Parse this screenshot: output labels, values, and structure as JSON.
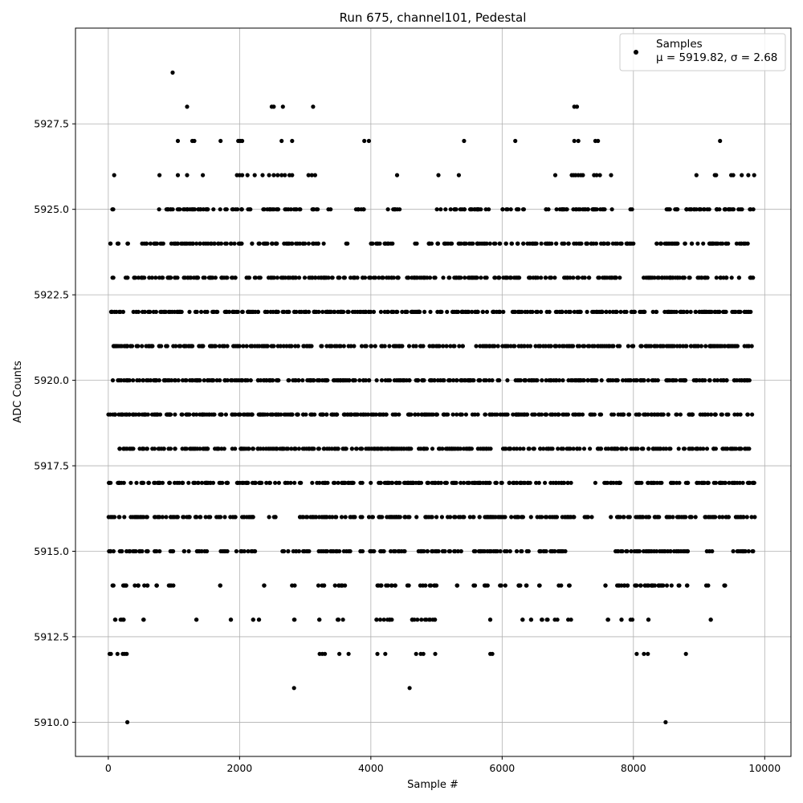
{
  "chart_data": {
    "type": "scatter",
    "title": "Run 675, channel101, Pedestal",
    "xlabel": "Sample #",
    "ylabel": "ADC Counts",
    "xlim": [
      -500,
      10400
    ],
    "ylim": [
      5909,
      5930.3
    ],
    "x_ticks": [
      0,
      2000,
      4000,
      6000,
      8000,
      10000
    ],
    "x_tick_labels": [
      "0",
      "2000",
      "4000",
      "6000",
      "8000",
      "10000"
    ],
    "y_ticks": [
      5910.0,
      5912.5,
      5915.0,
      5917.5,
      5920.0,
      5922.5,
      5925.0,
      5927.5
    ],
    "y_tick_labels": [
      "5910.0",
      "5912.5",
      "5915.0",
      "5917.5",
      "5920.0",
      "5922.5",
      "5925.0",
      "5927.5"
    ],
    "grid": true,
    "marker_color": "#000000",
    "legend": {
      "placement": "top-right",
      "series_label": "Samples",
      "stats_label": "μ = 5919.82, σ = 2.68"
    },
    "stats": {
      "mean": 5919.82,
      "std": 2.68
    },
    "series": [
      {
        "name": "Samples",
        "level_rows": [
          {
            "y": 5929,
            "x": [
              980
            ]
          },
          {
            "y": 5928,
            "x": [
              1200,
              2490,
              2520,
              2660,
              3120,
              7100,
              7140
            ]
          },
          {
            "y": 5927,
            "x": [
              1060,
              1280,
              1310,
              1710,
              1980,
              2010,
              2040,
              2640,
              2800,
              3900,
              3970,
              5420,
              6200,
              7100,
              7160,
              7420,
              7460,
              9320
            ]
          },
          {
            "y": 5926,
            "x": [
              90,
              780,
              1060,
              1200,
              1440,
              1960,
              2000,
              2040,
              2120,
              2230,
              2350,
              2450,
              2520,
              2580,
              2640,
              2690,
              2760,
              2800,
              3050,
              3100,
              3150,
              4400,
              5030,
              5340,
              6810,
              7060,
              7090,
              7120,
              7160,
              7200,
              7230,
              7400,
              7440,
              7490,
              7660,
              8960,
              9240,
              9260,
              9490,
              9520,
              9650,
              9750,
              9840
            ]
          },
          {
            "y": 5912,
            "x": [
              20,
              40,
              140,
              220,
              250,
              280,
              3220,
              3260,
              3300,
              3520,
              3660,
              4100,
              4220,
              4690,
              4760,
              4800,
              4980,
              5820,
              5850,
              8050,
              8160,
              8220,
              8800
            ]
          },
          {
            "y": 5911,
            "x": [
              2830,
              4590
            ]
          },
          {
            "y": 5910,
            "x": [
              290,
              8490
            ]
          }
        ],
        "bands": [
          {
            "y": 5925,
            "ranges": [
              [
                50,
                90
              ],
              [
                750,
                1000
              ],
              [
                1050,
                2050
              ],
              [
                2100,
                2200
              ],
              [
                2350,
                2950
              ],
              [
                3050,
                3200
              ],
              [
                3350,
                3400
              ],
              [
                3700,
                3900
              ],
              [
                4250,
                4450
              ],
              [
                5000,
                5700
              ],
              [
                5750,
                5800
              ],
              [
                6000,
                6250
              ],
              [
                6300,
                6350
              ],
              [
                6650,
                7000
              ],
              [
                7050,
                7700
              ],
              [
                7950,
                8000
              ],
              [
                8500,
                9850
              ]
            ]
          },
          {
            "y": 5924,
            "ranges": [
              [
                20,
                40
              ],
              [
                120,
                200
              ],
              [
                280,
                300
              ],
              [
                500,
                900
              ],
              [
                950,
                3000
              ],
              [
                3050,
                3300
              ],
              [
                3600,
                3650
              ],
              [
                3950,
                4150
              ],
              [
                4200,
                4450
              ],
              [
                4650,
                4700
              ],
              [
                4850,
                6000
              ],
              [
                6050,
                6600
              ],
              [
                6650,
                8050
              ],
              [
                8300,
                9800
              ]
            ]
          },
          {
            "y": 5923,
            "ranges": [
              [
                50,
                80
              ],
              [
                200,
                300
              ],
              [
                380,
                3800
              ],
              [
                3850,
                4350
              ],
              [
                4400,
                7800
              ],
              [
                8150,
                9850
              ]
            ]
          },
          {
            "y": 5922,
            "ranges": [
              [
                0,
                9850
              ]
            ]
          },
          {
            "y": 5921,
            "ranges": [
              [
                0,
                9850
              ]
            ]
          },
          {
            "y": 5920,
            "ranges": [
              [
                0,
                9850
              ]
            ]
          },
          {
            "y": 5919,
            "ranges": [
              [
                0,
                9850
              ]
            ]
          },
          {
            "y": 5918,
            "ranges": [
              [
                0,
                9850
              ]
            ]
          },
          {
            "y": 5917,
            "ranges": [
              [
                0,
                2600
              ],
              [
                2650,
                7200
              ],
              [
                7400,
                7800
              ],
              [
                8000,
                9850
              ]
            ]
          },
          {
            "y": 5916,
            "ranges": [
              [
                0,
                1800
              ],
              [
                1850,
                2300
              ],
              [
                2400,
                2550
              ],
              [
                2800,
                3500
              ],
              [
                3550,
                6350
              ],
              [
                6400,
                7100
              ],
              [
                7250,
                7400
              ],
              [
                7650,
                9850
              ]
            ]
          },
          {
            "y": 5915,
            "ranges": [
              [
                0,
                1000
              ],
              [
                1150,
                1250
              ],
              [
                1350,
                1550
              ],
              [
                1700,
                1850
              ],
              [
                1950,
                2250
              ],
              [
                2650,
                3100
              ],
              [
                3200,
                3700
              ],
              [
                3800,
                4200
              ],
              [
                4300,
                5400
              ],
              [
                5550,
                6300
              ],
              [
                6350,
                7000
              ],
              [
                7650,
                8850
              ],
              [
                9100,
                9200
              ],
              [
                9450,
                9850
              ]
            ]
          },
          {
            "y": 5914,
            "ranges": [
              [
                50,
                80
              ],
              [
                190,
                350
              ],
              [
                400,
                600
              ],
              [
                700,
                780
              ],
              [
                870,
                1000
              ],
              [
                1700,
                1720
              ],
              [
                2320,
                2380
              ],
              [
                2780,
                2850
              ],
              [
                3200,
                3320
              ],
              [
                3450,
                3650
              ],
              [
                4080,
                4400
              ],
              [
                4550,
                4600
              ],
              [
                4750,
                5000
              ],
              [
                5300,
                5320
              ],
              [
                5550,
                5600
              ],
              [
                5700,
                5800
              ],
              [
                5950,
                6050
              ],
              [
                6230,
                6420
              ],
              [
                6550,
                6600
              ],
              [
                6850,
                6900
              ],
              [
                7000,
                7050
              ],
              [
                7570,
                7580
              ],
              [
                7700,
                8600
              ],
              [
                8680,
                8700
              ],
              [
                8800,
                8830
              ],
              [
                9100,
                9150
              ],
              [
                9300,
                9400
              ]
            ]
          },
          {
            "y": 5913,
            "ranges": [
              [
                100,
                120
              ],
              [
                180,
                300
              ],
              [
                530,
                540
              ],
              [
                1340,
                1360
              ],
              [
                1860,
                1870
              ],
              [
                2200,
                2210
              ],
              [
                2290,
                2300
              ],
              [
                2830,
                2840
              ],
              [
                3210,
                3220
              ],
              [
                3490,
                3600
              ],
              [
                4080,
                4350
              ],
              [
                4620,
                5000
              ],
              [
                5810,
                5820
              ],
              [
                6290,
                6350
              ],
              [
                6400,
                6450
              ],
              [
                6600,
                6620
              ],
              [
                6660,
                6700
              ],
              [
                6800,
                6850
              ],
              [
                6990,
                7050
              ],
              [
                7600,
                7620
              ],
              [
                7800,
                7850
              ],
              [
                7950,
                8000
              ],
              [
                8220,
                8230
              ],
              [
                9120,
                9180
              ]
            ]
          }
        ]
      }
    ]
  }
}
